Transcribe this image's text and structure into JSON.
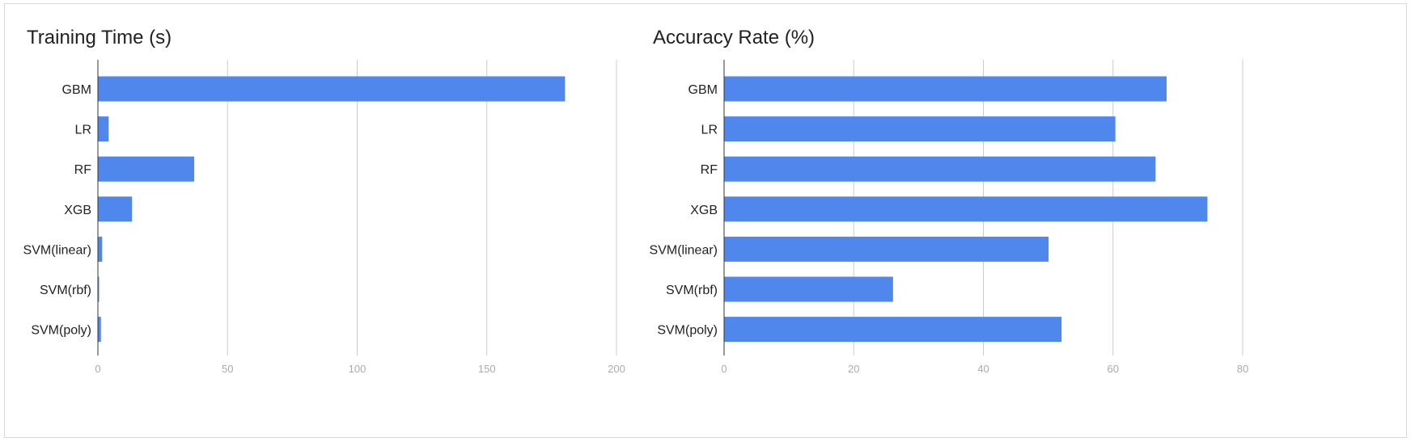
{
  "chart_data": [
    {
      "type": "bar",
      "orientation": "horizontal",
      "title": "Training Time (s)",
      "categories": [
        "GBM",
        "LR",
        "RF",
        "XGB",
        "SVM(linear)",
        "SVM(rbf)",
        "SVM(poly)"
      ],
      "values": [
        180,
        4,
        37,
        13,
        1.5,
        0.3,
        1
      ],
      "xlim": [
        0,
        200
      ],
      "xticks": [
        "0",
        "50",
        "100",
        "150",
        "200"
      ],
      "grid": true,
      "color": "#4f87ec"
    },
    {
      "type": "bar",
      "orientation": "horizontal",
      "title": "Accuracy Rate (%)",
      "categories": [
        "GBM",
        "LR",
        "RF",
        "XGB",
        "SVM(linear)",
        "SVM(rbf)",
        "SVM(poly)"
      ],
      "values": [
        68.2,
        60.3,
        66.5,
        74.5,
        50,
        26,
        52
      ],
      "xlim": [
        0,
        80
      ],
      "xticks": [
        "0",
        "20",
        "40",
        "60",
        "80"
      ],
      "grid": true,
      "color": "#4f87ec"
    }
  ]
}
